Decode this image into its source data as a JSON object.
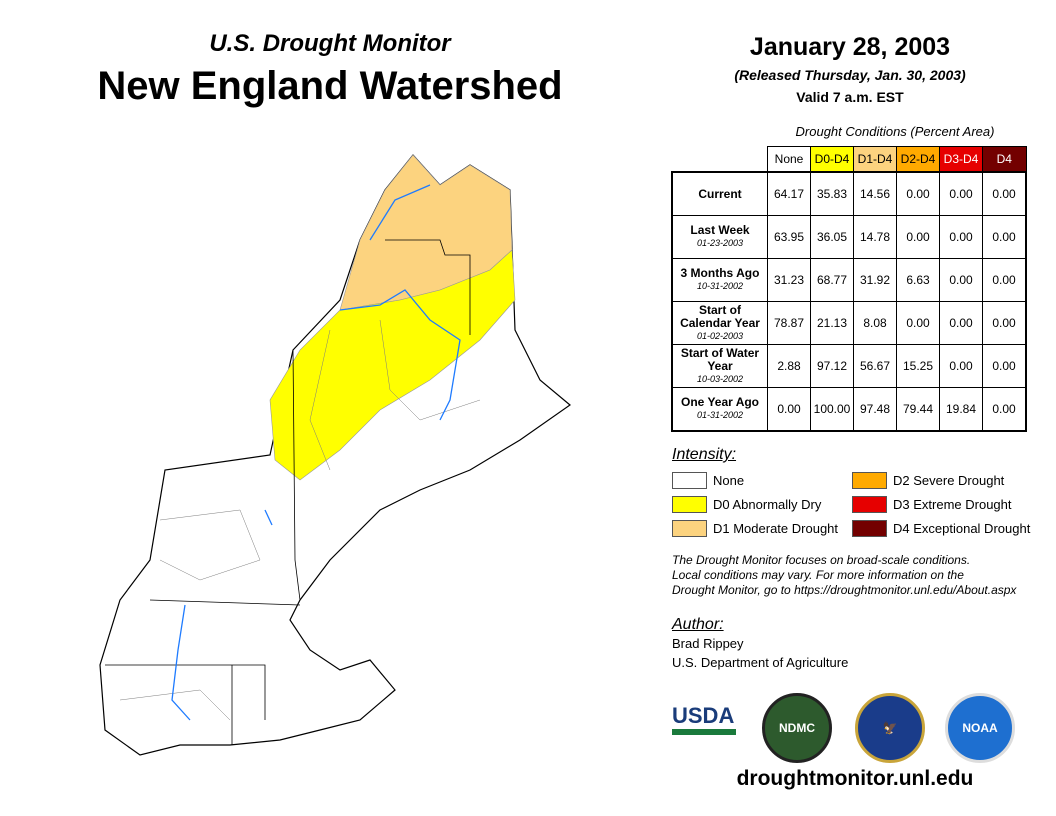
{
  "header": {
    "subtitle": "U.S. Drought Monitor",
    "title": "New England Watershed",
    "date": "January 28, 2003",
    "released": "(Released Thursday, Jan. 30, 2003)",
    "valid": "Valid 7 a.m. EST"
  },
  "table": {
    "caption": "Drought Conditions (Percent Area)",
    "columns": [
      {
        "label": "None",
        "color": "#ffffff",
        "text": "#000000"
      },
      {
        "label": "D0-D4",
        "color": "#ffff00",
        "text": "#000000"
      },
      {
        "label": "D1-D4",
        "color": "#fcd37f",
        "text": "#000000"
      },
      {
        "label": "D2-D4",
        "color": "#ffaa00",
        "text": "#000000"
      },
      {
        "label": "D3-D4",
        "color": "#e60000",
        "text": "#ffffff"
      },
      {
        "label": "D4",
        "color": "#730000",
        "text": "#ffffff"
      }
    ],
    "rows": [
      {
        "label": "Current",
        "date": "",
        "values": [
          "64.17",
          "35.83",
          "14.56",
          "0.00",
          "0.00",
          "0.00"
        ]
      },
      {
        "label": "Last Week",
        "date": "01-23-2003",
        "values": [
          "63.95",
          "36.05",
          "14.78",
          "0.00",
          "0.00",
          "0.00"
        ]
      },
      {
        "label": "3 Months Ago",
        "date": "10-31-2002",
        "values": [
          "31.23",
          "68.77",
          "31.92",
          "6.63",
          "0.00",
          "0.00"
        ]
      },
      {
        "label": "Start of Calendar Year",
        "date": "01-02-2003",
        "values": [
          "78.87",
          "21.13",
          "8.08",
          "0.00",
          "0.00",
          "0.00"
        ]
      },
      {
        "label": "Start of Water Year",
        "date": "10-03-2002",
        "values": [
          "2.88",
          "97.12",
          "56.67",
          "15.25",
          "0.00",
          "0.00"
        ]
      },
      {
        "label": "One Year Ago",
        "date": "01-31-2002",
        "values": [
          "0.00",
          "100.00",
          "97.48",
          "79.44",
          "19.84",
          "0.00"
        ]
      }
    ]
  },
  "legend": {
    "title": "Intensity:",
    "items": [
      {
        "label": "None",
        "color": "#ffffff"
      },
      {
        "label": "D0 Abnormally Dry",
        "color": "#ffff00"
      },
      {
        "label": "D1 Moderate Drought",
        "color": "#fcd37f"
      },
      {
        "label": "D2 Severe Drought",
        "color": "#ffaa00"
      },
      {
        "label": "D3 Extreme Drought",
        "color": "#e60000"
      },
      {
        "label": "D4 Exceptional Drought",
        "color": "#730000"
      }
    ]
  },
  "note": [
    "The Drought Monitor focuses on broad-scale conditions.",
    "Local conditions may vary. For more information on the",
    "Drought Monitor, go to https://droughtmonitor.unl.edu/About.aspx"
  ],
  "author": {
    "title": "Author:",
    "name": "Brad Rippey",
    "org": "U.S. Department of Agriculture"
  },
  "logos": {
    "usda": "USDA",
    "ndmc": "NDMC",
    "doc": "DOC",
    "noaa": "NOAA"
  },
  "url": "droughtmonitor.unl.edu"
}
